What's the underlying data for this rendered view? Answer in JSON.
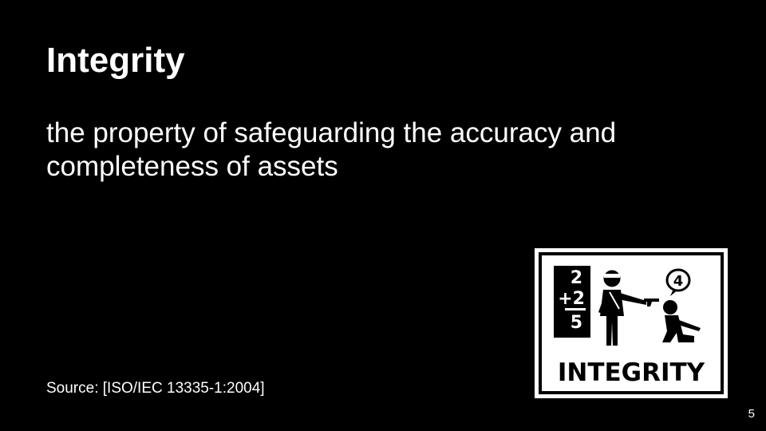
{
  "slide": {
    "title": "Integrity",
    "definition": "the property of safeguarding the accuracy and completeness of assets",
    "source": "Source: [ISO/IEC 13335-1:2004]",
    "page_number": "5"
  },
  "illustration": {
    "caption": "INTEGRITY",
    "equation_top": "2",
    "equation_middle": "+2",
    "equation_result": "5",
    "speech_bubble": "4"
  }
}
